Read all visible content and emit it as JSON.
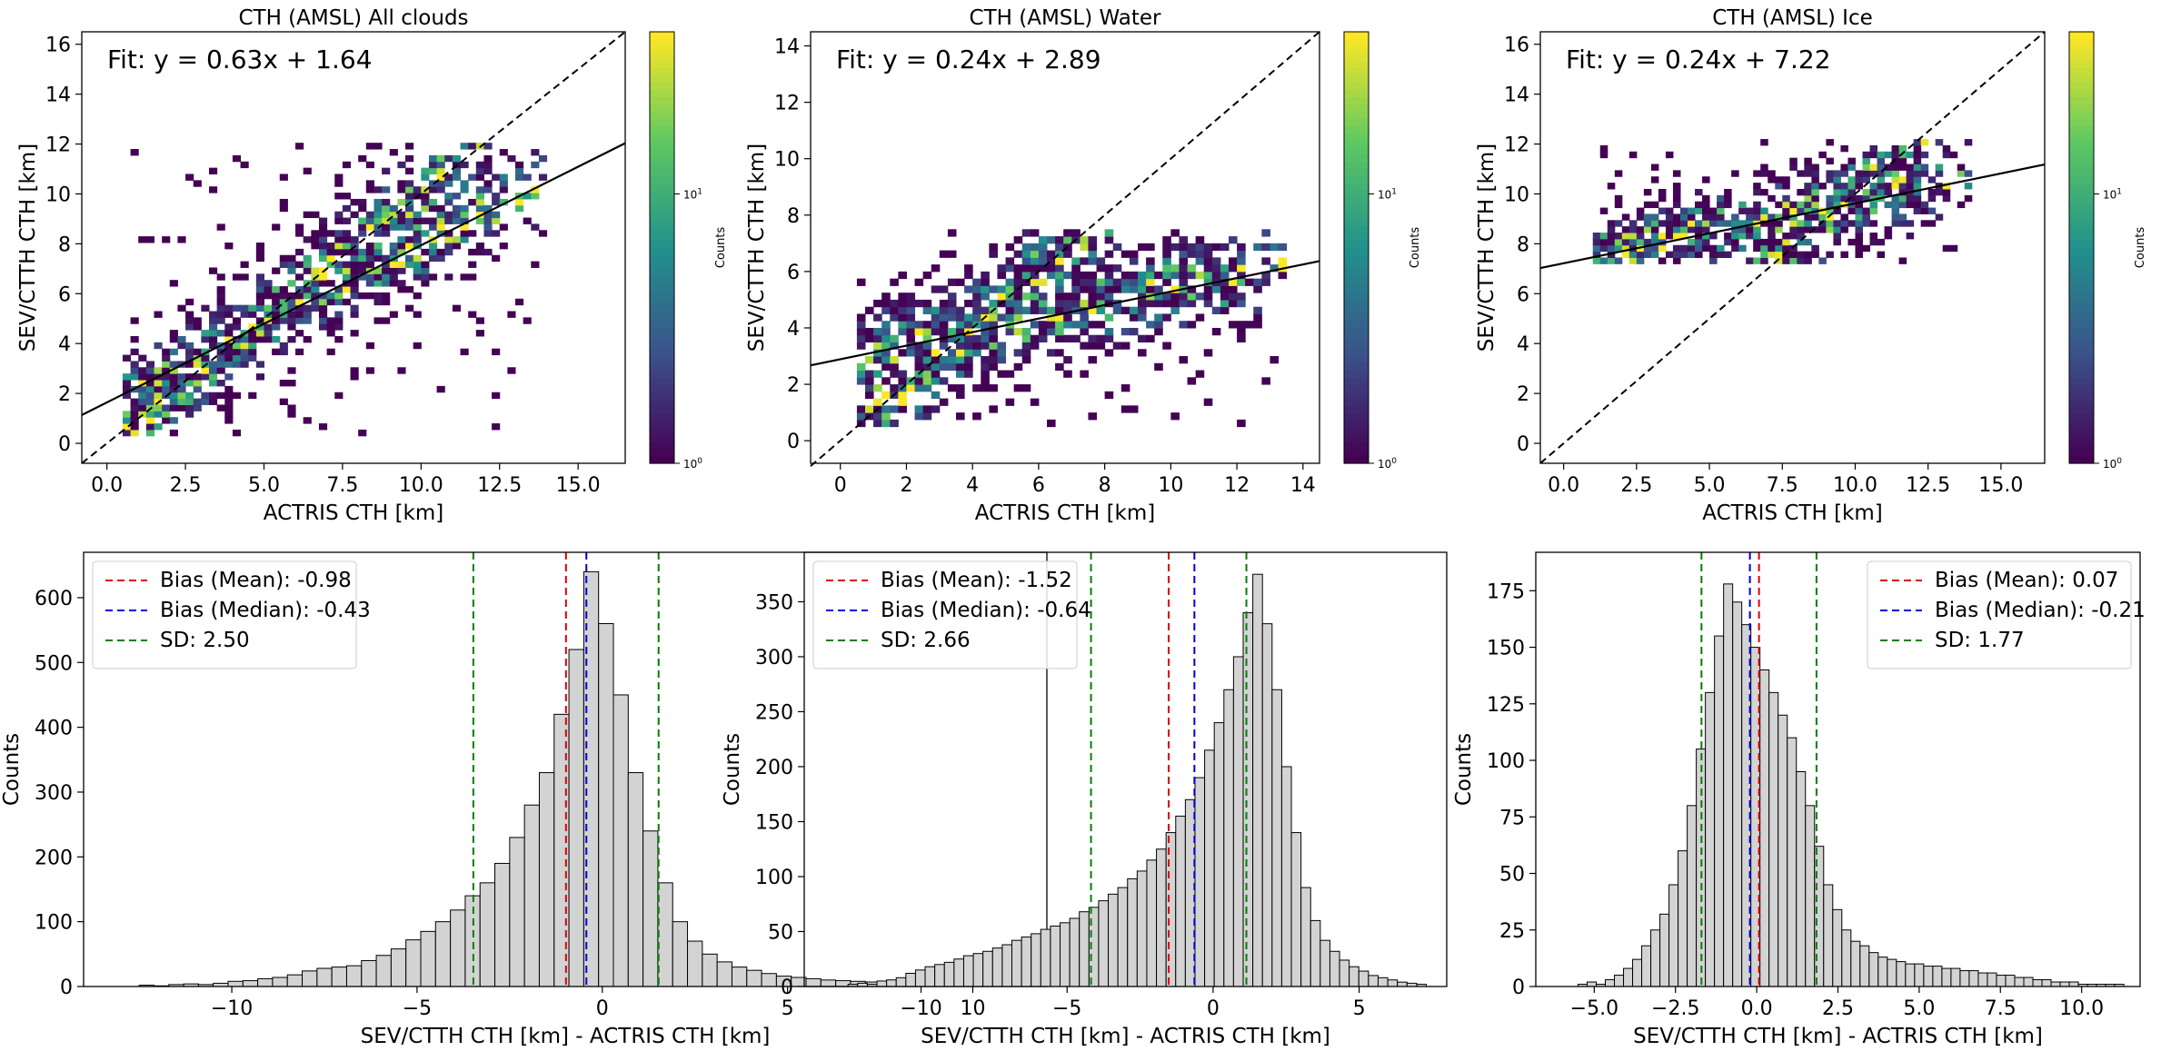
{
  "chart_data": [
    {
      "type": "heatmap",
      "title": "CTH (AMSL) All clouds",
      "xlabel": "ACTRIS CTH [km]",
      "ylabel": "SEV/CTTH CTH [km]",
      "xlim": [
        -0.8,
        16.5
      ],
      "ylim": [
        -0.8,
        16.5
      ],
      "xticks": [
        0,
        2.5,
        5,
        7.5,
        10,
        12.5,
        15
      ],
      "xtick_labels": [
        "0.0",
        "2.5",
        "5.0",
        "7.5",
        "10.0",
        "12.5",
        "15.0"
      ],
      "yticks": [
        0,
        2,
        4,
        6,
        8,
        10,
        12,
        14,
        16
      ],
      "ytick_labels": [
        "0",
        "2",
        "4",
        "6",
        "8",
        "10",
        "12",
        "14",
        "16"
      ],
      "fit_label": "Fit: y = 0.63x + 1.64",
      "fit": {
        "slope": 0.63,
        "intercept": 1.64
      },
      "x_range": [
        0.5,
        14
      ],
      "y_range": [
        0.3,
        12
      ],
      "colorbar_label": "Counts",
      "colorbar_scale": "log",
      "colorbar_ticks": [
        1,
        10
      ],
      "colorbar_max": 40,
      "colormap": "viridis"
    },
    {
      "type": "heatmap",
      "title": "CTH (AMSL) Water",
      "xlabel": "ACTRIS CTH [km]",
      "ylabel": "SEV/CTTH CTH [km]",
      "xlim": [
        -0.9,
        14.5
      ],
      "ylim": [
        -0.8,
        14.5
      ],
      "xticks": [
        0,
        2,
        4,
        6,
        8,
        10,
        12,
        14
      ],
      "xtick_labels": [
        "0",
        "2",
        "4",
        "6",
        "8",
        "10",
        "12",
        "14"
      ],
      "yticks": [
        0,
        2,
        4,
        6,
        8,
        10,
        12,
        14
      ],
      "ytick_labels": [
        "0",
        "2",
        "4",
        "6",
        "8",
        "10",
        "12",
        "14"
      ],
      "fit_label": "Fit: y = 0.24x + 2.89",
      "fit": {
        "slope": 0.24,
        "intercept": 2.89
      },
      "x_range": [
        0.5,
        13.5
      ],
      "y_range": [
        0.5,
        7.5
      ],
      "colorbar_label": "Counts",
      "colorbar_scale": "log",
      "colorbar_ticks": [
        1,
        10
      ],
      "colorbar_max": 40,
      "colormap": "viridis"
    },
    {
      "type": "heatmap",
      "title": "CTH (AMSL) Ice",
      "xlabel": "ACTRIS CTH [km]",
      "ylabel": "SEV/CTTH CTH [km]",
      "xlim": [
        -0.8,
        16.5
      ],
      "ylim": [
        -0.8,
        16.5
      ],
      "xticks": [
        0,
        2.5,
        5,
        7.5,
        10,
        12.5,
        15
      ],
      "xtick_labels": [
        "0.0",
        "2.5",
        "5.0",
        "7.5",
        "10.0",
        "12.5",
        "15.0"
      ],
      "yticks": [
        0,
        2,
        4,
        6,
        8,
        10,
        12,
        14,
        16
      ],
      "ytick_labels": [
        "0",
        "2",
        "4",
        "6",
        "8",
        "10",
        "12",
        "14",
        "16"
      ],
      "fit_label": "Fit: y = 0.24x + 7.22",
      "fit": {
        "slope": 0.24,
        "intercept": 7.22
      },
      "x_range": [
        1.0,
        14
      ],
      "y_range": [
        7.2,
        12
      ],
      "colorbar_label": "Counts",
      "colorbar_scale": "log",
      "colorbar_ticks": [
        1,
        10
      ],
      "colorbar_max": 40,
      "colormap": "viridis"
    },
    {
      "type": "bar",
      "xlabel": "SEV/CTTH CTH [km] - ACTRIS CTH [km]",
      "ylabel": "Counts",
      "xlim": [
        -14,
        12
      ],
      "ylim": [
        0,
        670
      ],
      "xticks": [
        -10,
        -5,
        0,
        5,
        10
      ],
      "xtick_labels": [
        "−10",
        "−5",
        "0",
        "5",
        "10"
      ],
      "yticks": [
        0,
        100,
        200,
        300,
        400,
        500,
        600
      ],
      "ytick_labels": [
        "0",
        "100",
        "200",
        "300",
        "400",
        "500",
        "600"
      ],
      "bin_start": -12.5,
      "bin_width": 0.4,
      "values": [
        2,
        1,
        3,
        4,
        3,
        5,
        8,
        9,
        12,
        14,
        18,
        24,
        28,
        30,
        32,
        40,
        48,
        58,
        72,
        85,
        100,
        118,
        140,
        160,
        190,
        230,
        280,
        330,
        420,
        520,
        640,
        560,
        450,
        330,
        240,
        160,
        100,
        70,
        50,
        38,
        30,
        25,
        20,
        16,
        14,
        12,
        10,
        9,
        8,
        7,
        6,
        5,
        4,
        3,
        3,
        2,
        2,
        1,
        1,
        1
      ],
      "legend_position": "upper-left",
      "vlines": [
        {
          "label": "Bias (Mean): -0.98",
          "value": -0.98,
          "color": "#dd0000"
        },
        {
          "label": "Bias (Median): -0.43",
          "value": -0.43,
          "color": "#0000dd"
        },
        {
          "label": "SD: 2.50",
          "value": -3.48,
          "color": "#008000"
        },
        {
          "label": "",
          "value": 1.52,
          "color": "#008000"
        }
      ]
    },
    {
      "type": "bar",
      "xlabel": "SEV/CTTH CTH [km] - ACTRIS CTH [km]",
      "ylabel": "Counts",
      "xlim": [
        -14,
        8
      ],
      "ylim": [
        0,
        395
      ],
      "xticks": [
        -10,
        -5,
        0,
        5
      ],
      "xtick_labels": [
        "−10",
        "−5",
        "0",
        "5"
      ],
      "yticks": [
        0,
        50,
        100,
        150,
        200,
        250,
        300,
        350
      ],
      "ytick_labels": [
        "0",
        "50",
        "100",
        "150",
        "200",
        "250",
        "300",
        "350"
      ],
      "bin_start": -12.5,
      "bin_width": 0.33,
      "values": [
        2,
        3,
        2,
        5,
        6,
        8,
        12,
        15,
        18,
        20,
        22,
        25,
        28,
        30,
        32,
        35,
        38,
        42,
        45,
        48,
        52,
        55,
        58,
        62,
        68,
        72,
        78,
        84,
        90,
        98,
        105,
        115,
        125,
        140,
        155,
        170,
        190,
        215,
        240,
        270,
        300,
        340,
        375,
        330,
        270,
        200,
        140,
        90,
        60,
        42,
        32,
        24,
        18,
        14,
        10,
        8,
        6,
        4,
        3,
        2
      ],
      "legend_position": "upper-left",
      "vlines": [
        {
          "label": "Bias (Mean): -1.52",
          "value": -1.52,
          "color": "#dd0000"
        },
        {
          "label": "Bias (Median): -0.64",
          "value": -0.64,
          "color": "#0000dd"
        },
        {
          "label": "SD: 2.66",
          "value": -4.18,
          "color": "#008000"
        },
        {
          "label": "",
          "value": 1.14,
          "color": "#008000"
        }
      ]
    },
    {
      "type": "bar",
      "xlabel": "SEV/CTTH CTH [km] - ACTRIS CTH [km]",
      "ylabel": "Counts",
      "xlim": [
        -6.8,
        11.8
      ],
      "ylim": [
        0,
        192
      ],
      "xticks": [
        -5,
        -2.5,
        0,
        2.5,
        5,
        7.5,
        10
      ],
      "xtick_labels": [
        "−5.0",
        "−2.5",
        "0.0",
        "2.5",
        "5.0",
        "7.5",
        "10.0"
      ],
      "yticks": [
        0,
        25,
        50,
        75,
        100,
        125,
        150,
        175
      ],
      "ytick_labels": [
        "0",
        "25",
        "50",
        "75",
        "100",
        "125",
        "150",
        "175"
      ],
      "bin_start": -5.5,
      "bin_width": 0.28,
      "values": [
        1,
        2,
        1,
        3,
        5,
        8,
        12,
        18,
        25,
        32,
        45,
        60,
        80,
        105,
        130,
        155,
        178,
        170,
        160,
        150,
        140,
        130,
        120,
        110,
        95,
        80,
        62,
        45,
        34,
        25,
        20,
        18,
        15,
        13,
        12,
        11,
        10,
        10,
        9,
        9,
        8,
        8,
        7,
        7,
        6,
        6,
        5,
        5,
        4,
        4,
        3,
        3,
        2,
        2,
        2,
        1,
        1,
        1,
        1,
        1
      ],
      "legend_position": "upper-right",
      "vlines": [
        {
          "label": "Bias (Mean): 0.07",
          "value": 0.07,
          "color": "#dd0000"
        },
        {
          "label": "Bias (Median): -0.21",
          "value": -0.21,
          "color": "#0000dd"
        },
        {
          "label": "SD: 1.77",
          "value": -1.7,
          "color": "#008000"
        },
        {
          "label": "",
          "value": 1.84,
          "color": "#008000"
        }
      ]
    }
  ]
}
